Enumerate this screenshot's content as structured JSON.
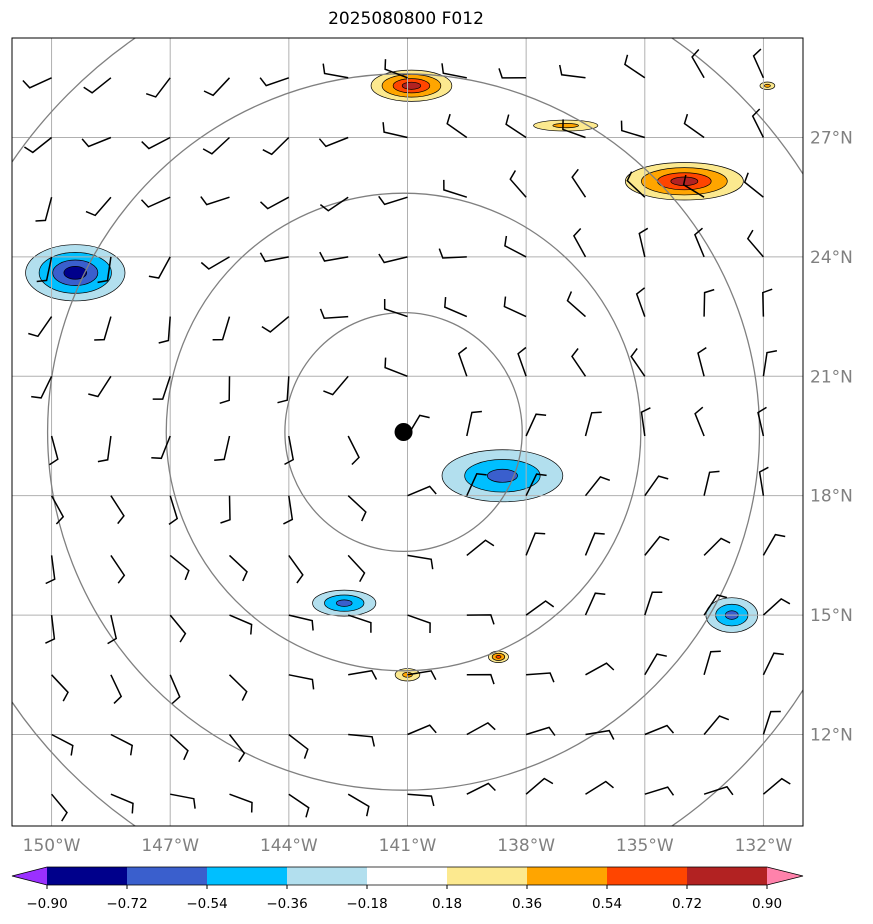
{
  "title": "2025080800 F012",
  "map": {
    "lon_range": [
      -151,
      -131
    ],
    "lat_range": [
      9.7,
      29.5
    ],
    "center": {
      "lon": -141.1,
      "lat": 19.6
    },
    "range_rings_deg": [
      3,
      6,
      9,
      12
    ],
    "lon_ticks": [
      {
        "value": -150,
        "label": "150°W"
      },
      {
        "value": -147,
        "label": "147°W"
      },
      {
        "value": -144,
        "label": "144°W"
      },
      {
        "value": -141,
        "label": "141°W"
      },
      {
        "value": -138,
        "label": "138°W"
      },
      {
        "value": -135,
        "label": "135°W"
      },
      {
        "value": -132,
        "label": "132°W"
      }
    ],
    "lat_ticks": [
      {
        "value": 27,
        "label": "27°N"
      },
      {
        "value": 24,
        "label": "24°N"
      },
      {
        "value": 21,
        "label": "21°N"
      },
      {
        "value": 18,
        "label": "18°N"
      },
      {
        "value": 15,
        "label": "15°N"
      },
      {
        "value": 12,
        "label": "12°N"
      }
    ],
    "grid": true,
    "colors": {
      "grid": "#b0b0b0",
      "rings": "#808080",
      "barbs": "#000000",
      "center": "#000000"
    }
  },
  "contours": [
    {
      "id": "pos-north-top",
      "sign": "positive",
      "peak": 0.72,
      "center": [
        -140.9,
        28.3
      ],
      "rx": 1.3,
      "ry": 0.5
    },
    {
      "id": "pos-north-strip",
      "sign": "positive",
      "peak": 0.36,
      "center": [
        -137.0,
        27.3
      ],
      "rx": 1.3,
      "ry": 0.22
    },
    {
      "id": "pos-northeast",
      "sign": "positive",
      "peak": 0.72,
      "center": [
        -134.0,
        25.9
      ],
      "rx": 1.9,
      "ry": 0.6
    },
    {
      "id": "pos-far-ne",
      "sign": "positive",
      "peak": 0.36,
      "center": [
        -131.9,
        28.3
      ],
      "rx": 0.3,
      "ry": 0.15
    },
    {
      "id": "pos-south-a",
      "sign": "positive",
      "peak": 0.36,
      "center": [
        -141.0,
        13.5
      ],
      "rx": 0.5,
      "ry": 0.25
    },
    {
      "id": "pos-south-b",
      "sign": "positive",
      "peak": 0.54,
      "center": [
        -138.7,
        13.95
      ],
      "rx": 0.35,
      "ry": 0.2
    },
    {
      "id": "neg-west",
      "sign": "negative",
      "peak": -0.72,
      "center": [
        -149.4,
        23.6
      ],
      "rx": 1.6,
      "ry": 0.9
    },
    {
      "id": "neg-central",
      "sign": "negative",
      "peak": -0.54,
      "center": [
        -138.6,
        18.5
      ],
      "rx": 2.1,
      "ry": 0.9
    },
    {
      "id": "neg-sw",
      "sign": "negative",
      "peak": -0.54,
      "center": [
        -142.6,
        15.3
      ],
      "rx": 1.1,
      "ry": 0.45
    },
    {
      "id": "neg-se",
      "sign": "negative",
      "peak": -0.54,
      "center": [
        -132.8,
        15.0
      ],
      "rx": 0.9,
      "ry": 0.6
    }
  ],
  "colorbar": {
    "boundaries": [
      -1.08,
      -0.9,
      -0.72,
      -0.54,
      -0.36,
      -0.18,
      0.18,
      0.36,
      0.54,
      0.72,
      0.9,
      1.08
    ],
    "colors": [
      "#9b30ff",
      "#00008b",
      "#3a5fcd",
      "#00bfff",
      "#b2dfee",
      "#ffffff",
      "#fce98f",
      "#ffa500",
      "#ff4500",
      "#b22222",
      "#ff82ab"
    ],
    "extend_min_color": "#9b30ff",
    "extend_max_color": "#ff82ab",
    "tick_values": [
      -0.9,
      -0.72,
      -0.54,
      -0.36,
      -0.18,
      0.18,
      0.36,
      0.54,
      0.72,
      0.9
    ],
    "tick_labels": [
      "−0.90",
      "−0.72",
      "−0.54",
      "−0.36",
      "−0.18",
      "0.18",
      "0.36",
      "0.54",
      "0.72",
      "0.90"
    ]
  }
}
